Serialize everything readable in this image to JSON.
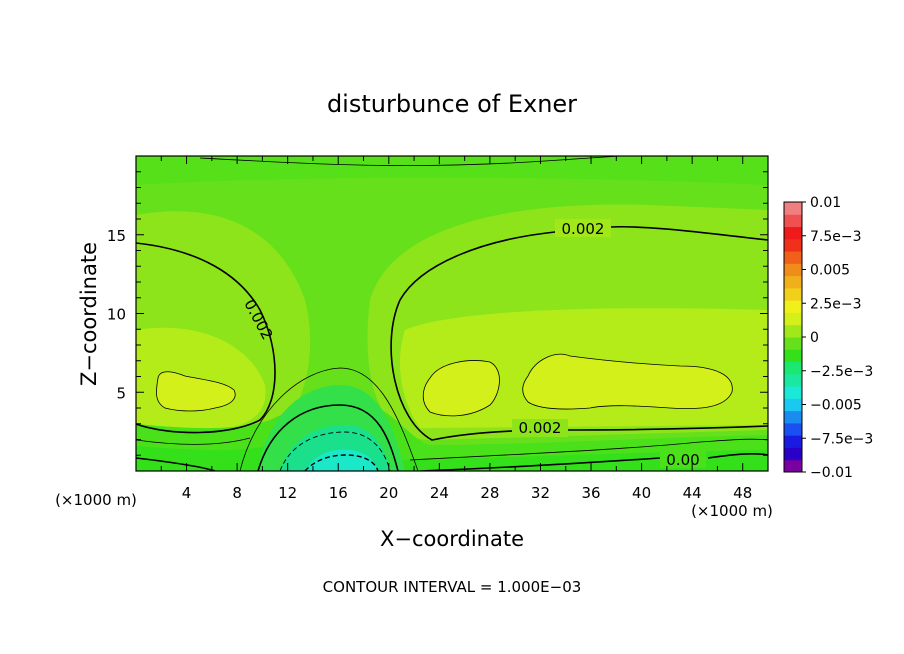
{
  "chart_data": {
    "type": "heatmap",
    "title": "disturbunce of Exner",
    "xlabel": "X−coordinate",
    "ylabel": "Z−coordinate",
    "x_unit": "(×1000 m)",
    "y_unit": "(×1000 m)",
    "xlim": [
      0,
      50
    ],
    "ylim": [
      0,
      20
    ],
    "x_ticks": [
      4,
      8,
      12,
      16,
      20,
      24,
      28,
      32,
      36,
      40,
      44,
      48
    ],
    "x_tick_labels": [
      "4",
      "8",
      "12",
      "16",
      "20",
      "24",
      "28",
      "32",
      "36",
      "40",
      "44",
      "48"
    ],
    "y_ticks": [
      5,
      10,
      15
    ],
    "y_tick_labels": [
      "5",
      "10",
      "15"
    ],
    "colorbar": {
      "range": [
        -0.01,
        0.01
      ],
      "tick_values": [
        0.01,
        0.0075,
        0.005,
        0.0025,
        0,
        -0.0025,
        -0.005,
        -0.0075,
        -0.01
      ],
      "tick_labels": [
        "0.01",
        "7.5e−3",
        "0.005",
        "2.5e−3",
        "0",
        "−2.5e−3",
        "−0.005",
        "−7.5e−3",
        "−0.01"
      ]
    },
    "contour_labels": [
      {
        "text": "0.002",
        "x": 27.5,
        "z": 15.3
      },
      {
        "text": "0.002",
        "x": 7.3,
        "z": 9.6
      },
      {
        "text": "0.002",
        "x": 28.5,
        "z": 2.9
      },
      {
        "text": "0.00",
        "x": 43.5,
        "z": 0.9
      }
    ],
    "contour_interval_label": "CONTOUR INTERVAL = 1.000E−03",
    "grid": false
  },
  "colors": {
    "background_field": "#66e01a",
    "band_green": "#33e01a",
    "band_lime": "#a0e81a",
    "band_yellow": "#d4f01a",
    "band_teal": "#1ae08c",
    "band_cyan": "#1ae8c8"
  }
}
